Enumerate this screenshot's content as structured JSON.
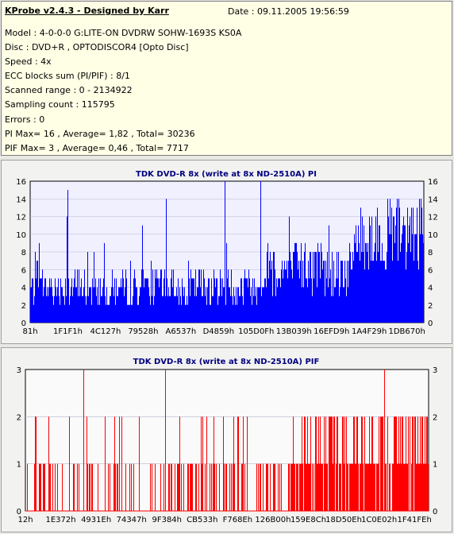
{
  "header": {
    "app_title": "KProbe v2.4.3 - Designed by Karr",
    "date": "Date : 09.11.2005 19:56:59"
  },
  "info_rows": [
    "Model : 4-0-0-0 G:LITE-ON DVDRW SOHW-1693S KS0A",
    "Disc : DVD+R , OPTODISCOR4 [Opto Disc]",
    "Speed : 4x",
    "ECC blocks sum (PI/PIF) : 8/1",
    "Scanned range : 0 - 2134922",
    "Sampling count : 115795",
    "Errors : 0",
    "PI Max= 16 , Average= 1,82 , Total= 30236",
    "PIF Max= 3 , Average= 0,46 , Total= 7717"
  ],
  "chart_data": [
    {
      "type": "bar",
      "title": "TDK DVD-R 8x (write at 8x ND-2510A) PI",
      "color": "#0000ff",
      "ylim": [
        0,
        16
      ],
      "yticks": [
        0,
        2,
        4,
        6,
        8,
        10,
        12,
        14,
        16
      ],
      "xticks": [
        "81h",
        "1F1F1h",
        "4C127h",
        "79528h",
        "A6537h",
        "D4859h",
        "105D0Fh",
        "13B039h",
        "16EFD9h",
        "1A4F29h",
        "1DB670h"
      ],
      "max": 16,
      "average": 1.82,
      "total": 30236
    },
    {
      "type": "bar",
      "title": "TDK DVD-R 8x (write at 8x ND-2510A) PIF",
      "color": "#ff0000",
      "ylim": [
        0,
        3
      ],
      "yticks": [
        0,
        1,
        2,
        3
      ],
      "xticks": [
        "12h",
        "1E372h",
        "4931Eh",
        "74347h",
        "9F384h",
        "CB533h",
        "F768Eh",
        "126B00h",
        "159E8Ch",
        "18D50Eh",
        "1C0E02h",
        "1F41FEh"
      ],
      "max": 3,
      "average": 0.46,
      "total": 7717
    }
  ]
}
